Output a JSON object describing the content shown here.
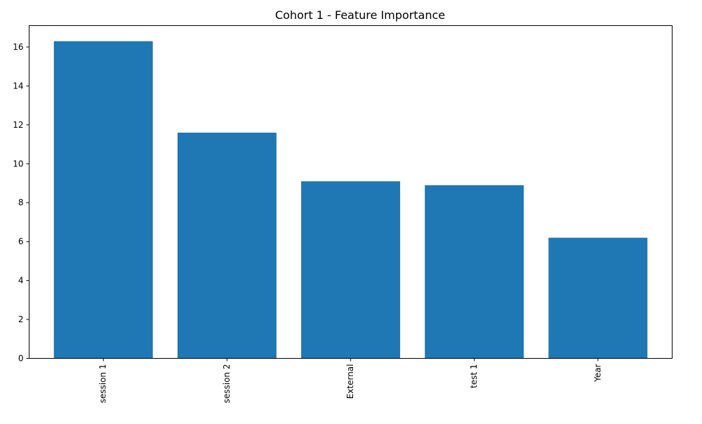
{
  "chart_data": {
    "type": "bar",
    "title": "Cohort 1 - Feature Importance",
    "xlabel": "",
    "ylabel": "",
    "categories": [
      "session 1",
      "session 2",
      "External",
      "test 1",
      "Year"
    ],
    "values": [
      16.3,
      11.6,
      9.1,
      8.9,
      6.2
    ],
    "ylim": [
      0,
      17.1
    ],
    "yticks": [
      0,
      2,
      4,
      6,
      8,
      10,
      12,
      14,
      16
    ],
    "xtick_rotation": "vertical",
    "grid": false,
    "legend": "none",
    "bar_color": "#1f77b4"
  }
}
